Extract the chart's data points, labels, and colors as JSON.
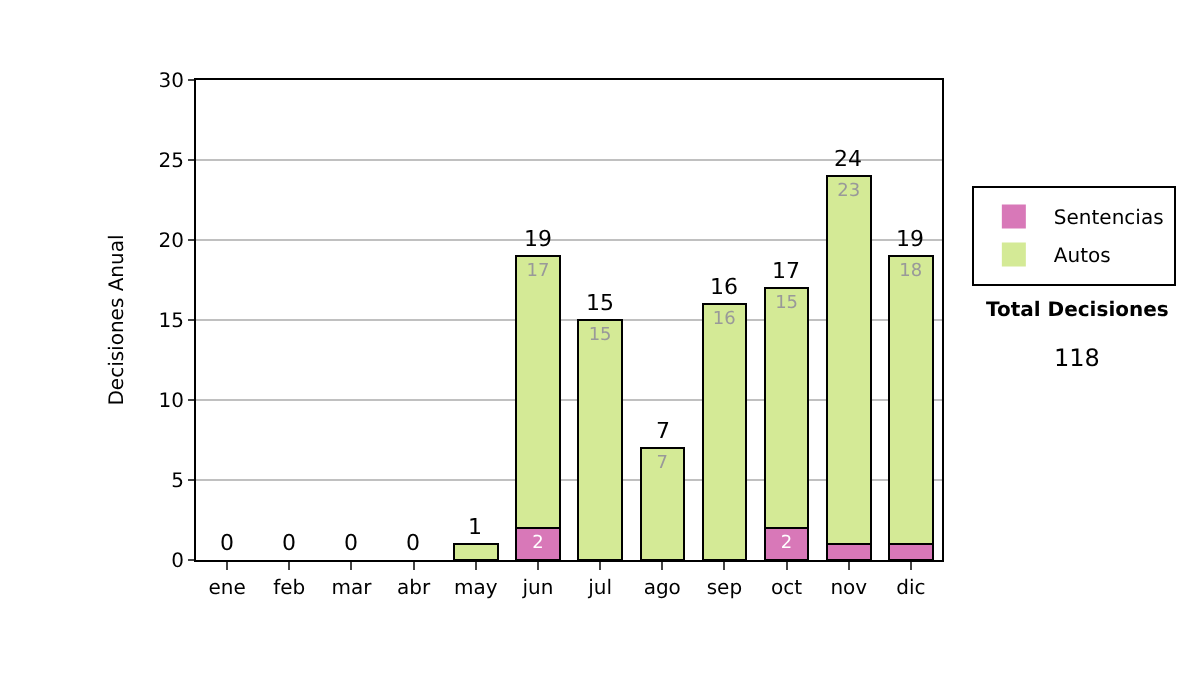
{
  "chart_data": {
    "type": "bar",
    "stacked": true,
    "ylabel": "Decisiones Anual",
    "categories": [
      "ene",
      "feb",
      "mar",
      "abr",
      "may",
      "jun",
      "jul",
      "ago",
      "sep",
      "oct",
      "nov",
      "dic"
    ],
    "series": [
      {
        "name": "Sentencias",
        "color": "#d878b8",
        "values": [
          0,
          0,
          0,
          0,
          0,
          2,
          0,
          0,
          0,
          2,
          1,
          1
        ],
        "value_labels": [
          null,
          null,
          null,
          null,
          null,
          "2",
          null,
          null,
          null,
          "2",
          null,
          null
        ]
      },
      {
        "name": "Autos",
        "color": "#d4ea96",
        "values": [
          0,
          0,
          0,
          0,
          1,
          17,
          15,
          7,
          16,
          15,
          23,
          18
        ],
        "value_labels": [
          null,
          null,
          null,
          null,
          null,
          "17",
          "15",
          "7",
          "16",
          "15",
          "23",
          "18"
        ]
      }
    ],
    "totals": [
      "0",
      "0",
      "0",
      "0",
      "1",
      "19",
      "15",
      "7",
      "16",
      "17",
      "24",
      "19"
    ],
    "ylim": [
      0,
      30
    ],
    "yticks": [
      0,
      5,
      10,
      15,
      20,
      25,
      30
    ],
    "grid": "y",
    "legend": "right",
    "annotations": [
      "Total Decisiones",
      "118"
    ]
  }
}
